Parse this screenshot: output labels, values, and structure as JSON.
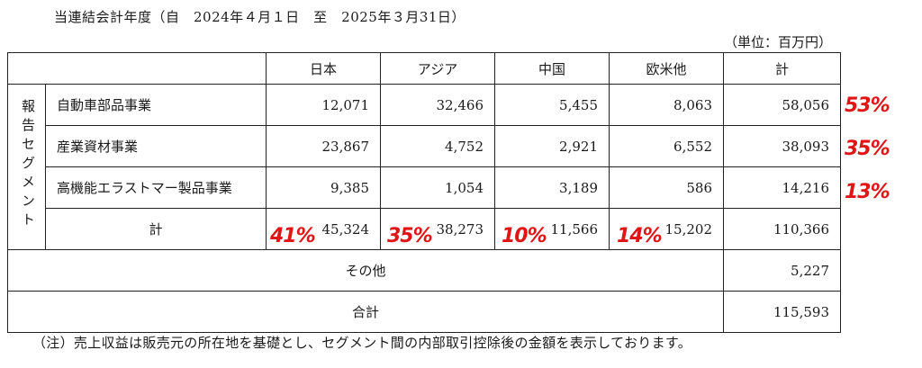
{
  "header": {
    "period": "当連結会計年度（自　2024年４月１日　至　2025年３月31日）",
    "unit": "（単位：百万円）"
  },
  "table": {
    "columns": [
      "日本",
      "アジア",
      "中国",
      "欧米他",
      "計"
    ],
    "segment_label": "報告セグメント",
    "rows": [
      {
        "label": "自動車部品事業",
        "values": [
          "12,071",
          "32,466",
          "5,455",
          "8,063",
          "58,056"
        ],
        "annotation": "53%"
      },
      {
        "label": "産業資材事業",
        "values": [
          "23,867",
          "4,752",
          "2,921",
          "6,552",
          "38,093"
        ],
        "annotation": "35%"
      },
      {
        "label": "高機能エラストマー製品事業",
        "values": [
          "9,385",
          "1,054",
          "3,189",
          "586",
          "14,216"
        ],
        "annotation": "13%"
      }
    ],
    "subtotal": {
      "label": "計",
      "values": [
        "45,324",
        "38,273",
        "11,566",
        "15,202",
        "110,366"
      ],
      "annotations": [
        "41%",
        "35%",
        "10%",
        "14%"
      ]
    },
    "other": {
      "label": "その他",
      "value": "5,227"
    },
    "total": {
      "label": "合計",
      "value": "115,593"
    }
  },
  "note": "（注）売上収益は販売元の所在地を基礎とし、セグメント間の内部取引控除後の金額を表示しております。",
  "colors": {
    "annotation": "#e01515",
    "border": "#222222",
    "text": "#1a1a1a"
  }
}
